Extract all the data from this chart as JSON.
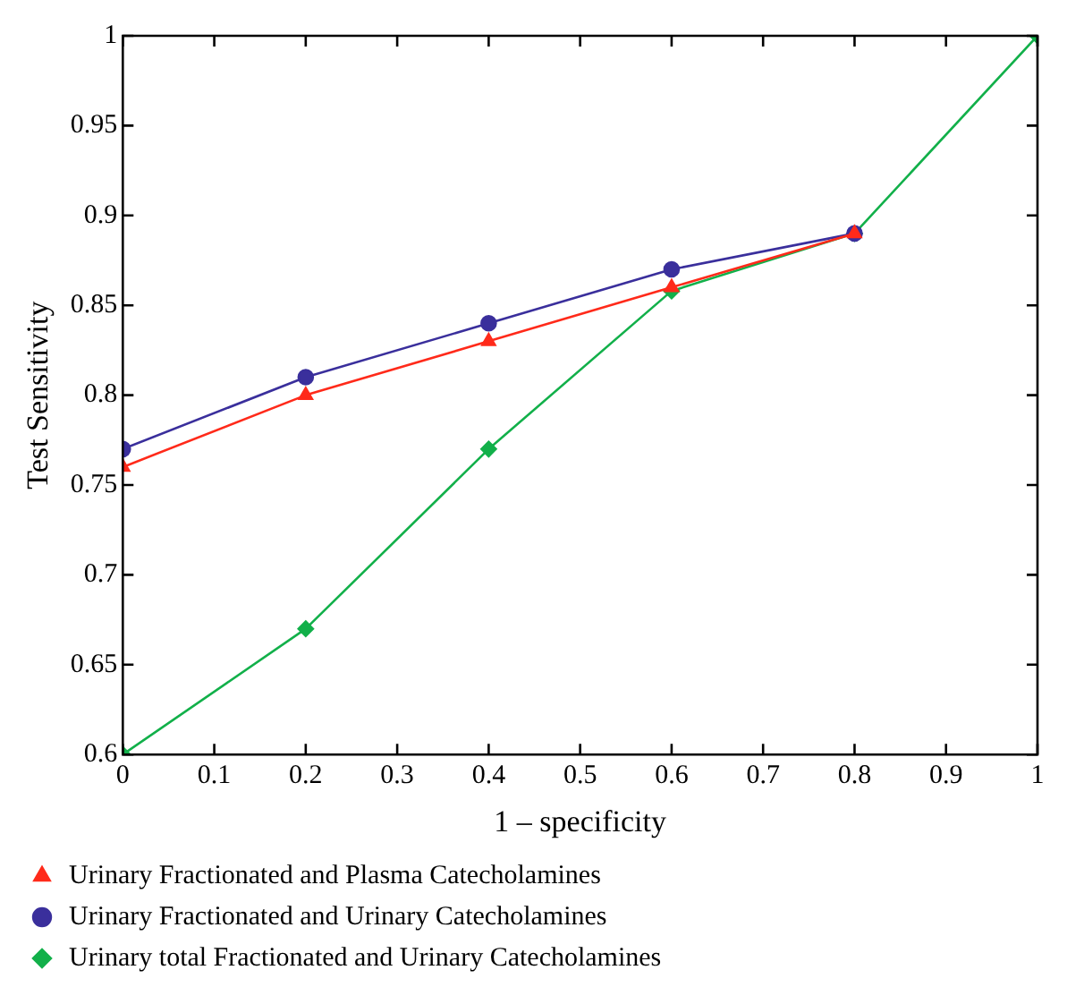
{
  "chart_data": {
    "type": "line",
    "xlabel": "1 – specificity",
    "ylabel": "Test Sensitivity",
    "xlim": [
      0,
      1
    ],
    "xticks": [
      0,
      0.1,
      0.2,
      0.3,
      0.4,
      0.5,
      0.6,
      0.7,
      0.8,
      0.9,
      1
    ],
    "ylim": [
      0.6,
      1
    ],
    "yticks": [
      0.6,
      0.65,
      0.7,
      0.75,
      0.8,
      0.85,
      0.9,
      0.95,
      1
    ],
    "grid": false,
    "legend": "bottom left",
    "line_style": "solid",
    "series": [
      {
        "name": "Urinary Fractionated and Plasma Catecholamines",
        "color": "#ff2a1a",
        "marker": "triangle",
        "x": [
          0,
          0.2,
          0.4,
          0.6,
          0.8
        ],
        "values": [
          0.76,
          0.8,
          0.83,
          0.86,
          0.89
        ]
      },
      {
        "name": "Urinary Fractionated and Urinary Catecholamines",
        "color": "#3a2f9c",
        "marker": "circle",
        "x": [
          0,
          0.2,
          0.4,
          0.6,
          0.8
        ],
        "values": [
          0.77,
          0.81,
          0.84,
          0.87,
          0.89
        ]
      },
      {
        "name": "Urinary total Fractionated and Urinary Catecholamines",
        "color": "#12b04a",
        "marker": "diamond",
        "x": [
          0,
          0.2,
          0.4,
          0.6,
          0.8,
          1
        ],
        "values": [
          0.6,
          0.67,
          0.77,
          0.858,
          0.89,
          1
        ]
      }
    ]
  }
}
